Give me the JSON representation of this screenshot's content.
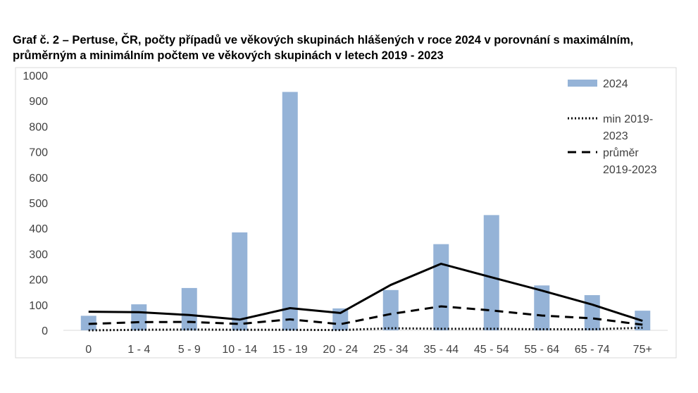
{
  "figure": {
    "title_line1": "Graf č. 2 – Pertuse, ČR, počty případů ve věkových skupinách hlášených v roce 2024 v porovnání s maximálním,",
    "title_line2": "průměrným a minimálním počtem ve věkových skupinách v  letech 2019 - 2023"
  },
  "chart_data": {
    "type": "bar",
    "title": "Graf č. 2 – Pertuse, ČR, počty případů ve věkových skupinách hlášených v roce 2024 v porovnání s maximálním, průměrným a minimálním počtem ve věkových skupinách v  letech 2019 - 2023",
    "categories": [
      "0",
      "1 - 4",
      "5 - 9",
      "10 - 14",
      "15 - 19",
      "20 - 24",
      "25 - 34",
      "35 - 44",
      "45 - 54",
      "55 - 64",
      "65 - 74",
      "75+"
    ],
    "ylim": [
      0,
      1000
    ],
    "yticks": [
      "0",
      "100",
      "200",
      "300",
      "400",
      "500",
      "600",
      "700",
      "800",
      "900",
      "1000"
    ],
    "grid": false,
    "legend_position": "top-right",
    "series": [
      {
        "name": "2024",
        "kind": "bar",
        "color": "#95b3d7",
        "values": [
          57,
          102,
          166,
          384,
          935,
          86,
          158,
          338,
          452,
          176,
          138,
          77
        ]
      },
      {
        "name": "",
        "kind": "line",
        "style": "solid",
        "color": "#000000",
        "values": [
          73,
          71,
          60,
          42,
          87,
          68,
          178,
          261,
          208,
          156,
          101,
          37
        ]
      },
      {
        "name": "min 2019-2023",
        "kind": "line",
        "style": "dotted",
        "color": "#000000",
        "values": [
          0,
          2,
          3,
          2,
          2,
          1,
          8,
          6,
          6,
          4,
          4,
          10
        ]
      },
      {
        "name": "průměr 2019-2023",
        "kind": "line",
        "style": "dashed",
        "color": "#000000",
        "values": [
          25,
          32,
          33,
          25,
          43,
          24,
          64,
          94,
          78,
          58,
          47,
          22
        ]
      }
    ],
    "legend": [
      {
        "series": 0,
        "lines": [
          "2024"
        ]
      },
      {
        "series": 2,
        "lines": [
          "min 2019-",
          "2023"
        ]
      },
      {
        "series": 3,
        "lines": [
          "průměr",
          "2019-2023"
        ]
      }
    ]
  }
}
